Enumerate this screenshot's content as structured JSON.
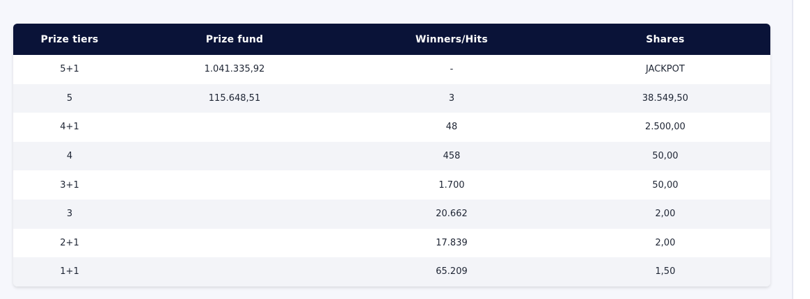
{
  "table": {
    "headers": [
      "Prize tiers",
      "Prize fund",
      "Winners/Hits",
      "Shares"
    ],
    "rows": [
      {
        "tier": "5+1",
        "fund": "1.041.335,92",
        "winners": "-",
        "shares": "JACKPOT"
      },
      {
        "tier": "5",
        "fund": "115.648,51",
        "winners": "3",
        "shares": "38.549,50"
      },
      {
        "tier": "4+1",
        "fund": "",
        "winners": "48",
        "shares": "2.500,00"
      },
      {
        "tier": "4",
        "fund": "",
        "winners": "458",
        "shares": "50,00"
      },
      {
        "tier": "3+1",
        "fund": "",
        "winners": "1.700",
        "shares": "50,00"
      },
      {
        "tier": "3",
        "fund": "",
        "winners": "20.662",
        "shares": "2,00"
      },
      {
        "tier": "2+1",
        "fund": "",
        "winners": "17.839",
        "shares": "2,00"
      },
      {
        "tier": "1+1",
        "fund": "",
        "winners": "65.209",
        "shares": "1,50"
      }
    ]
  },
  "colors": {
    "header_bg": "#0a1338",
    "header_text": "#ffffff",
    "row_alt": "#f3f4f8",
    "page_bg": "#f6f7fc"
  }
}
